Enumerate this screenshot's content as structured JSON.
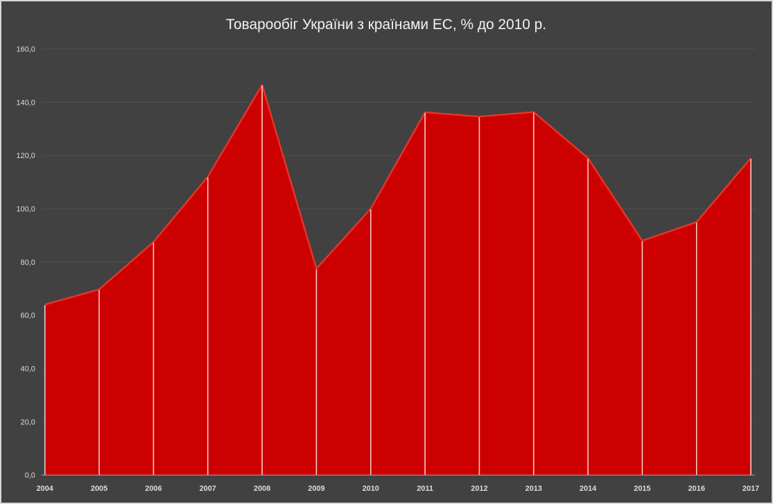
{
  "chart_data": {
    "type": "area",
    "title": "Товарообіг України з країнами ЕС, % до 2010 р.",
    "categories": [
      "2004",
      "2005",
      "2006",
      "2007",
      "2008",
      "2009",
      "2010",
      "2011",
      "2012",
      "2013",
      "2014",
      "2015",
      "2016",
      "2017"
    ],
    "values": [
      64.0,
      69.7,
      87.5,
      112.0,
      146.5,
      77.5,
      100.0,
      136.2,
      134.6,
      136.3,
      119.0,
      88.0,
      95.0,
      119.0
    ],
    "xlabel": "",
    "ylabel": "",
    "ylim": [
      0,
      160
    ],
    "ytick_step": 20,
    "ytick_labels": [
      "0,0",
      "20,0",
      "40,0",
      "60,0",
      "80,0",
      "100,0",
      "120,0",
      "140,0",
      "160,0"
    ],
    "grid": true,
    "legend": "none",
    "drop_lines": true,
    "colors": {
      "background": "#414141",
      "border": "#d6d6d6",
      "area_fill": "#cc0000",
      "series_line": "#e5342a",
      "drop_line": "#ffffff",
      "gridline": "#4f4f4f",
      "axis_line": "#a6a6a6",
      "tick_text": "#dcdcdc",
      "title_text": "#f2f2f2"
    }
  }
}
